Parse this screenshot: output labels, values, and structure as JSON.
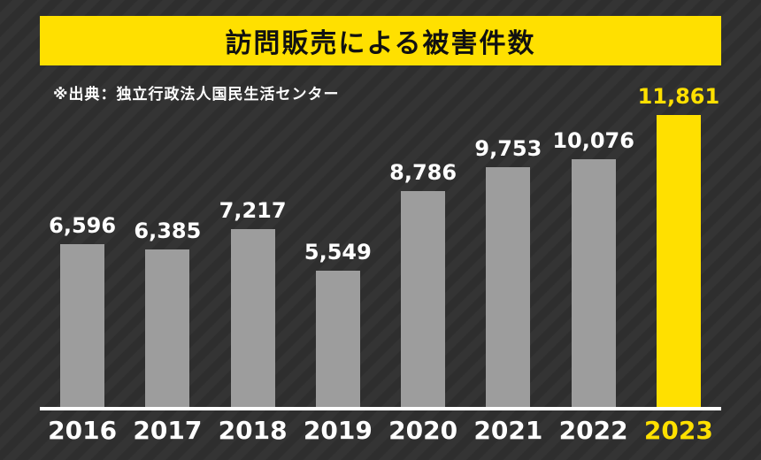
{
  "title": "訪問販売による被害件数",
  "source": "※出典：独立行政法人国民生活センター",
  "colors": {
    "accent": "#ffe000",
    "bar": "#9d9d9d",
    "background": "#2e2e2e",
    "text": "#ffffff"
  },
  "chart_data": {
    "type": "bar",
    "title": "訪問販売による被害件数",
    "categories": [
      "2016",
      "2017",
      "2018",
      "2019",
      "2020",
      "2021",
      "2022",
      "2023"
    ],
    "values": [
      6596,
      6385,
      7217,
      5549,
      8786,
      9753,
      10076,
      11861
    ],
    "value_labels": [
      "6,596",
      "6,385",
      "7,217",
      "5,549",
      "8,786",
      "9,753",
      "10,076",
      "11,861"
    ],
    "highlight_category": "2023",
    "xlabel": "",
    "ylabel": "",
    "ylim": [
      0,
      12000
    ],
    "grid": false,
    "legend": "none"
  }
}
